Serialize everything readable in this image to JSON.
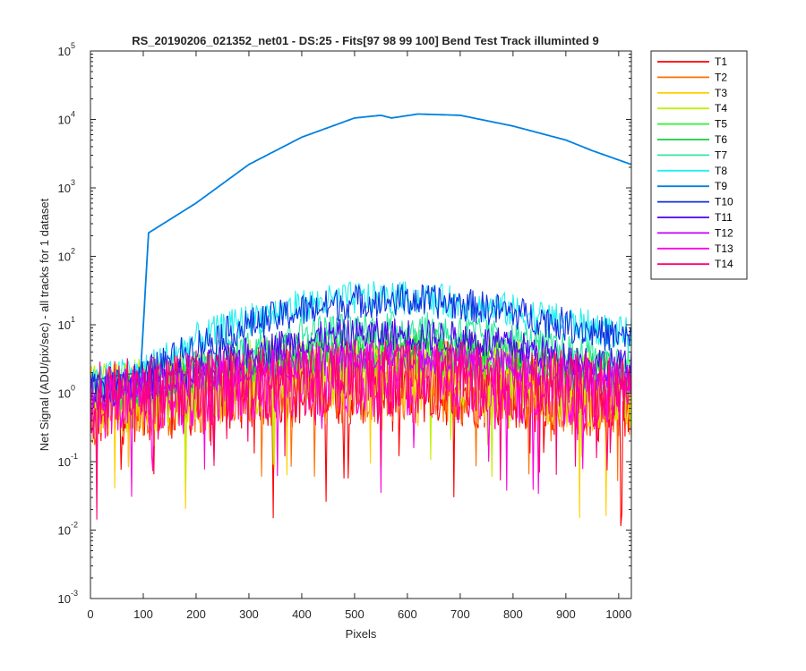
{
  "chart_data": {
    "type": "line",
    "title": "RS_20190206_021352_net01 - DS:25 - Fits[97   98   99  100]   Bend Test        Track illuminted 9",
    "xlabel": "Pixels",
    "ylabel": "Net Signal (ADU/pix/sec) - all tracks for 1 dataset",
    "xlim": [
      0,
      1024
    ],
    "ylim": [
      0.001,
      100000
    ],
    "yscale": "log",
    "grid": false,
    "legend_position": "outside-top-right",
    "x_ticks": [
      "0",
      "100",
      "200",
      "300",
      "400",
      "500",
      "600",
      "700",
      "800",
      "900",
      "1000"
    ],
    "y_ticks": [
      {
        "base": "10",
        "exp": "-3",
        "value": 0.001
      },
      {
        "base": "10",
        "exp": "-2",
        "value": 0.01
      },
      {
        "base": "10",
        "exp": "-1",
        "value": 0.1
      },
      {
        "base": "10",
        "exp": "0",
        "value": 1
      },
      {
        "base": "10",
        "exp": "1",
        "value": 10
      },
      {
        "base": "10",
        "exp": "2",
        "value": 100
      },
      {
        "base": "10",
        "exp": "3",
        "value": 1000
      },
      {
        "base": "10",
        "exp": "4",
        "value": 10000
      },
      {
        "base": "10",
        "exp": "5",
        "value": 100000
      }
    ],
    "series": [
      {
        "name": "T1",
        "color": "#ff0000",
        "x": [
          0,
          100,
          200,
          300,
          400,
          500,
          600,
          700,
          800,
          900,
          1024
        ],
        "y": [
          0.5,
          0.7,
          0.8,
          1.0,
          1.1,
          1.2,
          1.2,
          1.1,
          1.0,
          0.8,
          0.6
        ]
      },
      {
        "name": "T2",
        "color": "#ff7000",
        "x": [
          0,
          100,
          200,
          300,
          400,
          500,
          600,
          700,
          800,
          900,
          1024
        ],
        "y": [
          0.6,
          0.8,
          0.9,
          1.1,
          1.2,
          1.3,
          1.3,
          1.2,
          1.1,
          0.9,
          0.7
        ]
      },
      {
        "name": "T3",
        "color": "#ffd000",
        "x": [
          0,
          100,
          200,
          300,
          400,
          500,
          600,
          700,
          800,
          900,
          1024
        ],
        "y": [
          0.7,
          0.9,
          1.1,
          1.4,
          1.7,
          1.9,
          1.9,
          1.7,
          1.4,
          1.1,
          0.9
        ]
      },
      {
        "name": "T4",
        "color": "#c0f000",
        "x": [
          0,
          100,
          200,
          300,
          400,
          500,
          600,
          700,
          800,
          900,
          1024
        ],
        "y": [
          0.8,
          1.0,
          1.2,
          1.7,
          2.1,
          2.4,
          2.4,
          2.1,
          1.8,
          1.4,
          1.1
        ]
      },
      {
        "name": "T5",
        "color": "#30f030",
        "x": [
          0,
          100,
          200,
          300,
          400,
          500,
          600,
          700,
          800,
          900,
          1024
        ],
        "y": [
          0.9,
          1.1,
          1.6,
          2.3,
          3.0,
          3.4,
          3.4,
          3.0,
          2.5,
          2.0,
          1.6
        ]
      },
      {
        "name": "T6",
        "color": "#10d040",
        "x": [
          0,
          100,
          200,
          300,
          400,
          500,
          600,
          700,
          800,
          900,
          1024
        ],
        "y": [
          1.0,
          1.3,
          2.0,
          3.2,
          4.5,
          5.2,
          5.2,
          4.6,
          3.8,
          2.9,
          2.2
        ]
      },
      {
        "name": "T7",
        "color": "#30e8a0",
        "x": [
          0,
          100,
          200,
          300,
          400,
          500,
          600,
          700,
          800,
          900,
          1024
        ],
        "y": [
          1.1,
          1.5,
          2.6,
          4.8,
          7.5,
          9.0,
          9.0,
          8.0,
          6.2,
          4.2,
          2.9
        ]
      },
      {
        "name": "T8",
        "color": "#20f0f0",
        "x": [
          0,
          100,
          200,
          300,
          400,
          500,
          600,
          700,
          800,
          900,
          1024
        ],
        "y": [
          1.5,
          2.1,
          6.0,
          12,
          19,
          24.5,
          24.5,
          21,
          16,
          11,
          7
        ]
      },
      {
        "name": "T9",
        "color": "#0080e0",
        "x": [
          0,
          50,
          95,
          110,
          200,
          300,
          400,
          500,
          550,
          570,
          620,
          700,
          800,
          900,
          950,
          1024
        ],
        "y": [
          1.5,
          1.8,
          2.0,
          220,
          600,
          2200,
          5500,
          10500,
          11500,
          10500,
          12000,
          11500,
          8000,
          5000,
          3500,
          2200
        ]
      },
      {
        "name": "T10",
        "color": "#1030e0",
        "x": [
          0,
          100,
          200,
          300,
          400,
          500,
          600,
          700,
          800,
          900,
          1024
        ],
        "y": [
          1.2,
          1.8,
          5.0,
          10,
          16,
          22,
          23,
          20,
          15,
          10,
          6
        ]
      },
      {
        "name": "T11",
        "color": "#5000f0",
        "x": [
          0,
          100,
          200,
          300,
          400,
          500,
          600,
          700,
          800,
          900,
          1024
        ],
        "y": [
          1.0,
          1.3,
          2.2,
          3.8,
          5.8,
          7.2,
          7.2,
          6.3,
          4.8,
          3.3,
          2.4
        ]
      },
      {
        "name": "T12",
        "color": "#c000ff",
        "x": [
          0,
          100,
          200,
          300,
          400,
          500,
          600,
          700,
          800,
          900,
          1024
        ],
        "y": [
          0.9,
          1.1,
          1.6,
          2.2,
          2.9,
          3.4,
          3.4,
          3.0,
          2.5,
          1.9,
          1.5
        ]
      },
      {
        "name": "T13",
        "color": "#ff00e0",
        "x": [
          0,
          100,
          200,
          300,
          400,
          500,
          600,
          700,
          800,
          900,
          1024
        ],
        "y": [
          0.7,
          0.9,
          1.1,
          1.3,
          1.5,
          1.6,
          1.6,
          1.5,
          1.3,
          1.1,
          0.9
        ]
      },
      {
        "name": "T14",
        "color": "#ff0070",
        "x": [
          0,
          100,
          200,
          300,
          400,
          500,
          600,
          700,
          800,
          900,
          1024
        ],
        "y": [
          0.8,
          1.0,
          1.2,
          1.4,
          1.6,
          1.7,
          1.7,
          1.6,
          1.4,
          1.2,
          1.0
        ]
      }
    ]
  }
}
